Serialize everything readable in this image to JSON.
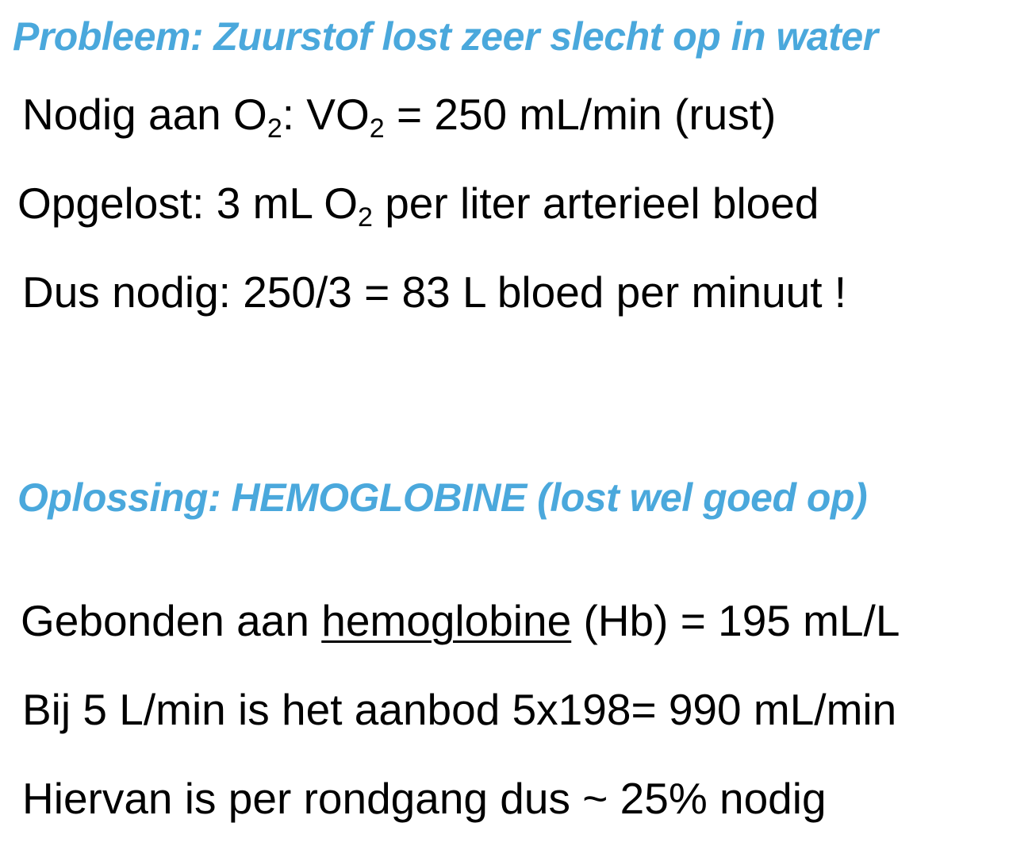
{
  "problem": {
    "heading": "Probleem: Zuurstof lost zeer slecht op in water",
    "line1": {
      "a": "Nodig aan O",
      "a_sub": "2",
      "b": ":  VO",
      "b_sub": "2",
      "c": " = 250 mL/min (rust)"
    },
    "line2": {
      "a": "Opgelost: 3 mL O",
      "a_sub": "2",
      "b": " per liter arterieel bloed"
    },
    "line3": "Dus nodig: 250/3 = 83 L bloed per minuut !"
  },
  "solution": {
    "heading": "Oplossing: HEMOGLOBINE (lost wel goed op)",
    "line1": {
      "a": "Gebonden aan ",
      "underlined": "hemoglobine",
      "b": " (Hb) = 195 mL/L"
    },
    "line2": "Bij 5 L/min is het aanbod 5x198= 990 mL/min",
    "line3": "Hiervan is per rondgang dus ~ 25% nodig"
  }
}
